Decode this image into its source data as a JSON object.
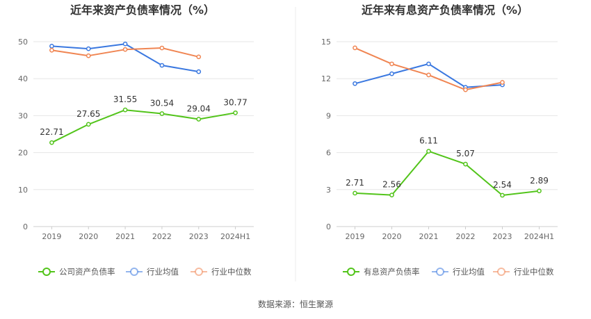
{
  "source": "数据来源：恒生聚源",
  "chart_data": [
    {
      "type": "line",
      "title": "近年来资产负债率情况（%）",
      "categories": [
        "2019",
        "2020",
        "2021",
        "2022",
        "2023",
        "2024H1"
      ],
      "ylim": [
        0,
        50
      ],
      "yticks": [
        0,
        10,
        20,
        30,
        40,
        50
      ],
      "grid": true,
      "legend_position": "bottom",
      "series": [
        {
          "name": "公司资产负债率",
          "color": "#52c41a",
          "values": [
            22.71,
            27.65,
            31.55,
            30.54,
            29.04,
            30.77
          ],
          "labels": [
            "22.71",
            "27.65",
            "31.55",
            "30.54",
            "29.04",
            "30.77"
          ]
        },
        {
          "name": "行业均值",
          "color": "#3a78e0",
          "values": [
            48.8,
            48.1,
            49.4,
            43.6,
            41.9,
            null
          ]
        },
        {
          "name": "行业中位数",
          "color": "#f08552",
          "values": [
            47.7,
            46.2,
            47.9,
            48.3,
            45.9,
            null
          ]
        }
      ]
    },
    {
      "type": "line",
      "title": "近年来有息资产负债率情况（%）",
      "categories": [
        "2019",
        "2020",
        "2021",
        "2022",
        "2023",
        "2024H1"
      ],
      "ylim": [
        0,
        15
      ],
      "yticks": [
        0,
        3,
        6,
        9,
        12,
        15
      ],
      "grid": true,
      "legend_position": "bottom",
      "series": [
        {
          "name": "有息资产负债率",
          "color": "#52c41a",
          "values": [
            2.71,
            2.56,
            6.11,
            5.07,
            2.54,
            2.89
          ],
          "labels": [
            "2.71",
            "2.56",
            "6.11",
            "5.07",
            "2.54",
            "2.89"
          ]
        },
        {
          "name": "行业均值",
          "color": "#3a78e0",
          "values": [
            11.6,
            12.4,
            13.2,
            11.3,
            11.5,
            null
          ]
        },
        {
          "name": "行业中位数",
          "color": "#f08552",
          "values": [
            14.5,
            13.2,
            12.3,
            11.1,
            11.7,
            null
          ]
        }
      ]
    }
  ]
}
